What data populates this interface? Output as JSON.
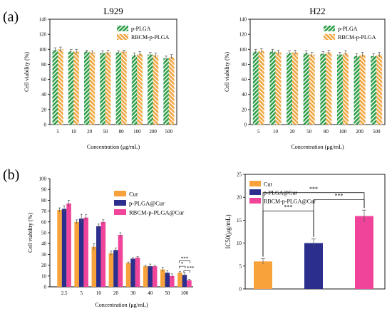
{
  "panel_labels": [
    "(a)",
    "(b)"
  ],
  "colors": {
    "green": "#2e9e47",
    "orange_hatch": "#f0a640",
    "orange": "#f7a23a",
    "navy": "#2b2e8c",
    "pink": "#f0449a",
    "axis": "#000000"
  },
  "chart_data": [
    {
      "id": "a_left",
      "type": "bar",
      "title": "L929",
      "xlabel": "Concentration (μg/mL)",
      "ylabel": "Cell viability (%)",
      "ylim": [
        0,
        140
      ],
      "yticks": [
        0,
        20,
        40,
        60,
        80,
        100,
        120,
        140
      ],
      "categories": [
        "5",
        "10",
        "20",
        "50",
        "80",
        "100",
        "200",
        "500"
      ],
      "legend_position": "top-right",
      "series": [
        {
          "name": "p-PLGA",
          "pattern": "hatch-green",
          "values": [
            99,
            97,
            97,
            95,
            96,
            92,
            93,
            88
          ],
          "errors": [
            3,
            3,
            2,
            3,
            2,
            3,
            3,
            3
          ]
        },
        {
          "name": "RBCM-p-PLGA",
          "pattern": "hatch-orange",
          "values": [
            100,
            97,
            96,
            96,
            97,
            94,
            92,
            90
          ],
          "errors": [
            3,
            3,
            2,
            3,
            2,
            3,
            3,
            3
          ]
        }
      ]
    },
    {
      "id": "a_right",
      "type": "bar",
      "title": "H22",
      "xlabel": "Concentration (μg/mL)",
      "ylabel": "Cell viability (%)",
      "ylim": [
        0,
        140
      ],
      "yticks": [
        0,
        20,
        40,
        60,
        80,
        100,
        120,
        140
      ],
      "categories": [
        "5",
        "10",
        "20",
        "50",
        "80",
        "100",
        "200",
        "500"
      ],
      "legend_position": "top-right",
      "series": [
        {
          "name": "p-PLGA",
          "pattern": "hatch-green",
          "values": [
            97,
            97,
            95,
            95,
            94,
            93,
            91,
            91
          ],
          "errors": [
            3,
            3,
            3,
            3,
            3,
            3,
            3,
            3
          ]
        },
        {
          "name": "RBCM-p-PLGA",
          "pattern": "hatch-orange",
          "values": [
            98,
            96,
            96,
            93,
            96,
            95,
            93,
            93
          ],
          "errors": [
            3,
            3,
            3,
            3,
            3,
            3,
            3,
            3
          ]
        }
      ]
    },
    {
      "id": "b_left",
      "type": "bar",
      "title": "",
      "xlabel": "Concentration (μg/mL)",
      "ylabel": "Cell viability (%)",
      "ylim": [
        0,
        100
      ],
      "yticks": [
        0,
        10,
        20,
        30,
        40,
        50,
        60,
        70,
        80,
        90,
        100
      ],
      "categories": [
        "2.5",
        "5",
        "10",
        "20",
        "30",
        "40",
        "50",
        "100"
      ],
      "legend_position": "top-right",
      "series": [
        {
          "name": "Cur",
          "color_key": "orange",
          "values": [
            71,
            60,
            37,
            31,
            22,
            19,
            16,
            13
          ],
          "errors": [
            2,
            2,
            3,
            2,
            1,
            1,
            2,
            1
          ]
        },
        {
          "name": "p-PLGA@Cur",
          "color_key": "navy",
          "values": [
            72,
            63,
            56,
            34,
            26,
            19,
            13,
            11
          ],
          "errors": [
            3,
            4,
            2,
            2,
            1,
            2,
            2,
            2
          ]
        },
        {
          "name": "RBCM-p-PLGA@Cur",
          "color_key": "pink",
          "values": [
            77,
            64,
            60,
            48,
            27,
            19,
            10,
            6
          ],
          "errors": [
            3,
            3,
            2,
            2,
            1,
            1,
            2,
            1
          ]
        }
      ],
      "significance": [
        {
          "label": "***",
          "group": "100",
          "pair": [
            "Cur",
            "RBCM-p-PLGA@Cur"
          ]
        },
        {
          "label": "*",
          "group": "100",
          "pair": [
            "Cur",
            "p-PLGA@Cur"
          ]
        },
        {
          "label": "***",
          "group": "100",
          "pair": [
            "p-PLGA@Cur",
            "RBCM-p-PLGA@Cur"
          ]
        }
      ]
    },
    {
      "id": "b_right",
      "type": "bar",
      "title": "",
      "xlabel": "",
      "ylabel": "IC50(μg/mL)",
      "ylim": [
        0,
        25
      ],
      "yticks": [
        0,
        5,
        10,
        15,
        20,
        25
      ],
      "categories": [
        "Cur",
        "p-PLGA@Cur",
        "RBCM-p-PLGA@Cur"
      ],
      "legend_position": "top-left",
      "series": [
        {
          "name": "IC50",
          "values": [
            6.0,
            10.0,
            15.9
          ],
          "errors": [
            0.6,
            0.9,
            1.3
          ],
          "color_keys": [
            "orange",
            "navy",
            "pink"
          ]
        }
      ],
      "significance": [
        {
          "label": "***",
          "pair": [
            "Cur",
            "RBCM-p-PLGA@Cur"
          ]
        },
        {
          "label": "***",
          "pair": [
            "Cur",
            "p-PLGA@Cur"
          ]
        },
        {
          "label": "***",
          "pair": [
            "p-PLGA@Cur",
            "RBCM-p-PLGA@Cur"
          ]
        }
      ]
    }
  ]
}
